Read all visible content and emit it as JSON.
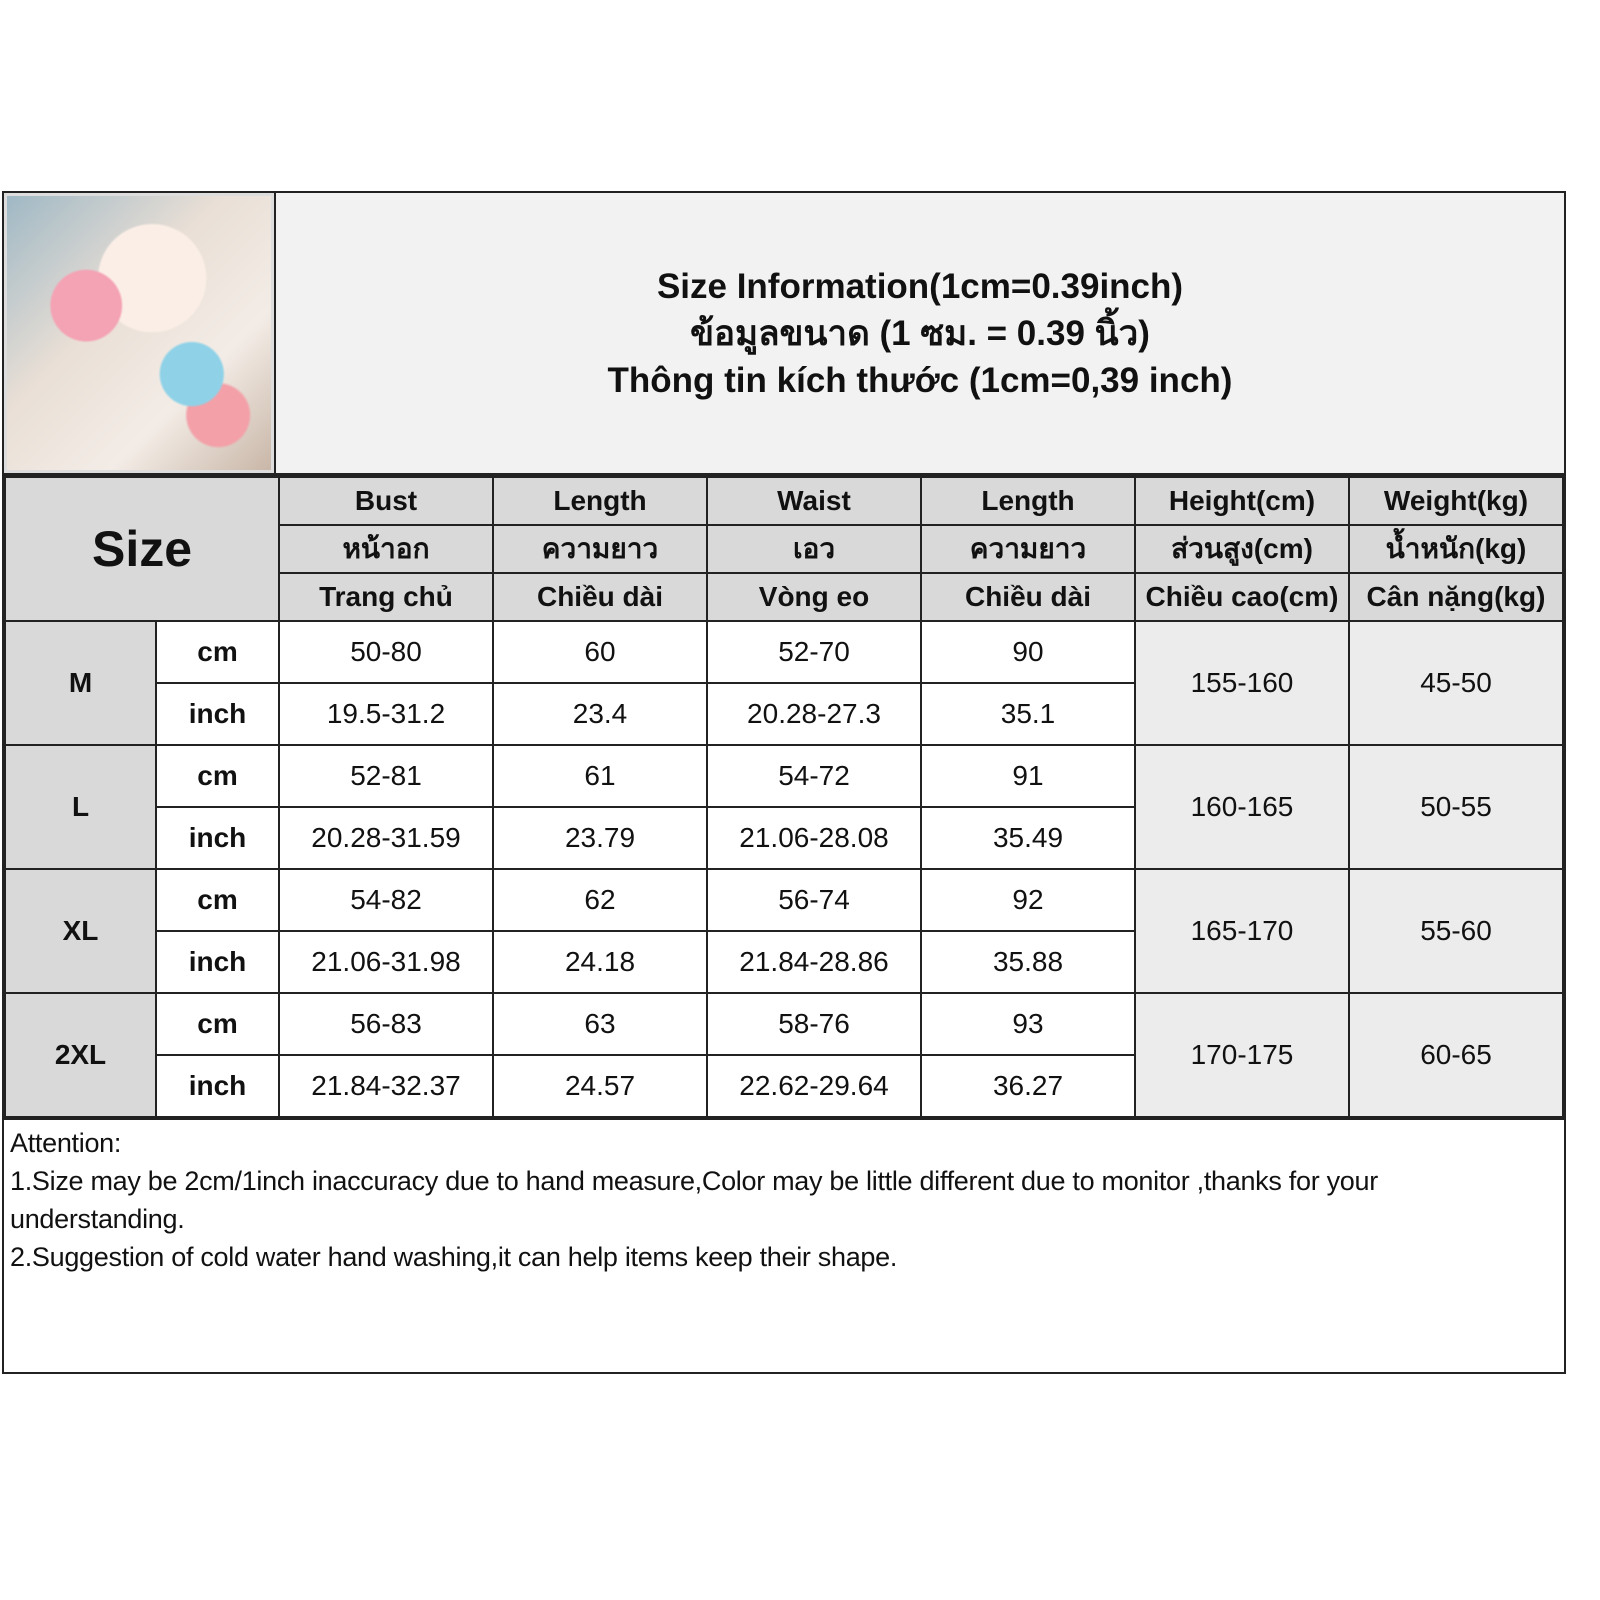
{
  "title_lines": [
    "Size Information(1cm=0.39inch)",
    "ข้อมูลขนาด (1 ซม. = 0.39 นิ้ว)",
    "Thông tin kích thước (1cm=0,39 inch)"
  ],
  "size_label": "Size",
  "columns": [
    [
      "Bust",
      "หน้าอก",
      "Trang chủ"
    ],
    [
      "Length",
      "ความยาว",
      "Chiều dài"
    ],
    [
      "Waist",
      "เอว",
      "Vòng eo"
    ],
    [
      "Length",
      "ความยาว",
      "Chiều dài"
    ],
    [
      "Height(cm)",
      "ส่วนสูง(cm)",
      "Chiều cao(cm)"
    ],
    [
      "Weight(kg)",
      "น้ำหนัก(kg)",
      "Cân nặng(kg)"
    ]
  ],
  "units": [
    "cm",
    "inch"
  ],
  "sizes": [
    {
      "name": "M",
      "cm": [
        "50-80",
        "60",
        "52-70",
        "90"
      ],
      "inch": [
        "19.5-31.2",
        "23.4",
        "20.28-27.3",
        "35.1"
      ],
      "height": "155-160",
      "weight": "45-50"
    },
    {
      "name": "L",
      "cm": [
        "52-81",
        "61",
        "54-72",
        "91"
      ],
      "inch": [
        "20.28-31.59",
        "23.79",
        "21.06-28.08",
        "35.49"
      ],
      "height": "160-165",
      "weight": "50-55"
    },
    {
      "name": "XL",
      "cm": [
        "54-82",
        "62",
        "56-74",
        "92"
      ],
      "inch": [
        "21.06-31.98",
        "24.18",
        "21.84-28.86",
        "35.88"
      ],
      "height": "165-170",
      "weight": "55-60"
    },
    {
      "name": "2XL",
      "cm": [
        "56-83",
        "63",
        "58-76",
        "93"
      ],
      "inch": [
        "21.84-32.37",
        "24.57",
        "22.62-29.64",
        "36.27"
      ],
      "height": "170-175",
      "weight": "60-65"
    }
  ],
  "notes": [
    "Attention:",
    "1.Size may be 2cm/1inch inaccuracy due to hand measure,Color may be little different due to monitor ,thanks for your understanding.",
    "2.Suggestion of cold water hand washing,it can help items keep their shape."
  ]
}
